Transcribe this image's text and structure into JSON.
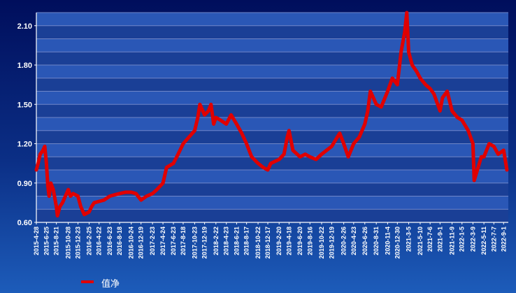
{
  "chart_data": {
    "type": "line",
    "title": "",
    "xlabel": "",
    "ylabel": "",
    "ylim": [
      0.6,
      2.2
    ],
    "yticks": [
      0.6,
      0.9,
      1.2,
      1.5,
      1.8,
      2.1
    ],
    "ytick_labels": [
      "0.60",
      "0.90",
      "1.20",
      "1.50",
      "1.80",
      "2.10"
    ],
    "grid": true,
    "legend": "bottom-left",
    "colors": {
      "line": "#e00000",
      "grid": "#6f86c8",
      "band_dark": "#1a3f96",
      "band_light": "#2a57b6",
      "axis": "#ffffff"
    },
    "x_tick_labels": [
      "2015-4-28",
      "2015-6-25",
      "2015-8-21",
      "2015-10-28",
      "2015-12-23",
      "2016-2-25",
      "2016-4-22",
      "2016-6-23",
      "2016-8-18",
      "2016-10-24",
      "2016-12-19",
      "2017-2-23",
      "2017-4-24",
      "2017-6-23",
      "2017-8-18",
      "2017-10-23",
      "2017-12-19",
      "2018-2-22",
      "2018-4-23",
      "2018-6-21",
      "2018-8-17",
      "2018-10-22",
      "2018-12-17",
      "2019-2-20",
      "2019-4-18",
      "2019-6-20",
      "2019-8-16",
      "2019-10-22",
      "2019-12-19",
      "2020-2-26",
      "2020-4-23",
      "2020-6-26",
      "2020-8-31",
      "2020-11-4",
      "2020-12-30",
      "2021-3-5",
      "2021-5-10",
      "2021-7-6",
      "2021-9-1",
      "2021-11-9",
      "2022-1-5",
      "2022-3-9",
      "2022-5-11",
      "2022-7-7",
      "2022-9-1"
    ],
    "series": [
      {
        "name": "值净",
        "x": [
          "2015-4-28",
          "2015-5-8",
          "2015-5-20",
          "2015-6-5",
          "2015-6-15",
          "2015-6-25",
          "2015-7-3",
          "2015-7-10",
          "2015-7-20",
          "2015-8-3",
          "2015-8-21",
          "2015-8-27",
          "2015-9-10",
          "2015-9-25",
          "2015-10-28",
          "2015-11-10",
          "2015-11-25",
          "2015-12-23",
          "2016-1-8",
          "2016-1-28",
          "2016-2-25",
          "2016-3-10",
          "2016-3-25",
          "2016-4-22",
          "2016-5-20",
          "2016-6-23",
          "2016-7-20",
          "2016-8-18",
          "2016-9-20",
          "2016-10-24",
          "2016-11-20",
          "2016-12-19",
          "2017-1-20",
          "2017-2-23",
          "2017-3-20",
          "2017-4-24",
          "2017-5-15",
          "2017-6-23",
          "2017-7-20",
          "2017-8-18",
          "2017-9-20",
          "2017-10-23",
          "2017-11-10",
          "2017-11-22",
          "2017-12-19",
          "2018-1-10",
          "2018-1-25",
          "2018-2-9",
          "2018-2-22",
          "2018-3-20",
          "2018-4-23",
          "2018-5-20",
          "2018-6-21",
          "2018-7-20",
          "2018-8-17",
          "2018-9-15",
          "2018-10-22",
          "2018-11-20",
          "2018-12-17",
          "2019-1-3",
          "2019-2-20",
          "2019-3-20",
          "2019-4-8",
          "2019-4-18",
          "2019-5-10",
          "2019-6-20",
          "2019-7-20",
          "2019-8-16",
          "2019-9-20",
          "2019-10-22",
          "2019-11-20",
          "2019-12-19",
          "2020-1-20",
          "2020-2-3",
          "2020-2-26",
          "2020-3-23",
          "2020-4-23",
          "2020-5-25",
          "2020-6-26",
          "2020-7-13",
          "2020-7-28",
          "2020-8-31",
          "2020-9-28",
          "2020-11-4",
          "2020-12-1",
          "2020-12-30",
          "2021-1-20",
          "2021-2-10",
          "2021-2-22",
          "2021-3-5",
          "2021-3-25",
          "2021-4-20",
          "2021-5-10",
          "2021-6-10",
          "2021-7-6",
          "2021-7-28",
          "2021-9-1",
          "2021-9-15",
          "2021-10-12",
          "2021-11-9",
          "2021-12-10",
          "2022-1-5",
          "2022-2-10",
          "2022-3-9",
          "2022-3-16",
          "2022-4-26",
          "2022-5-11",
          "2022-6-10",
          "2022-7-7",
          "2022-8-1",
          "2022-9-1",
          "2022-9-20"
        ],
        "values": [
          1.0,
          1.05,
          1.12,
          1.15,
          1.18,
          1.05,
          0.88,
          0.8,
          0.9,
          0.85,
          0.72,
          0.65,
          0.72,
          0.75,
          0.85,
          0.8,
          0.82,
          0.8,
          0.72,
          0.66,
          0.68,
          0.72,
          0.75,
          0.76,
          0.77,
          0.8,
          0.81,
          0.82,
          0.83,
          0.83,
          0.82,
          0.77,
          0.8,
          0.82,
          0.85,
          0.9,
          1.02,
          1.05,
          1.12,
          1.2,
          1.25,
          1.3,
          1.4,
          1.5,
          1.42,
          1.45,
          1.5,
          1.35,
          1.4,
          1.38,
          1.35,
          1.42,
          1.35,
          1.28,
          1.2,
          1.1,
          1.05,
          1.02,
          1.0,
          1.05,
          1.08,
          1.12,
          1.25,
          1.3,
          1.15,
          1.1,
          1.12,
          1.1,
          1.08,
          1.12,
          1.15,
          1.18,
          1.25,
          1.28,
          1.2,
          1.1,
          1.2,
          1.25,
          1.35,
          1.45,
          1.6,
          1.5,
          1.48,
          1.6,
          1.7,
          1.65,
          1.9,
          2.05,
          2.2,
          1.9,
          1.8,
          1.75,
          1.7,
          1.65,
          1.62,
          1.58,
          1.45,
          1.55,
          1.6,
          1.45,
          1.4,
          1.38,
          1.3,
          1.2,
          0.92,
          1.1,
          1.1,
          1.2,
          1.18,
          1.12,
          1.15,
          1.0
        ]
      }
    ]
  }
}
